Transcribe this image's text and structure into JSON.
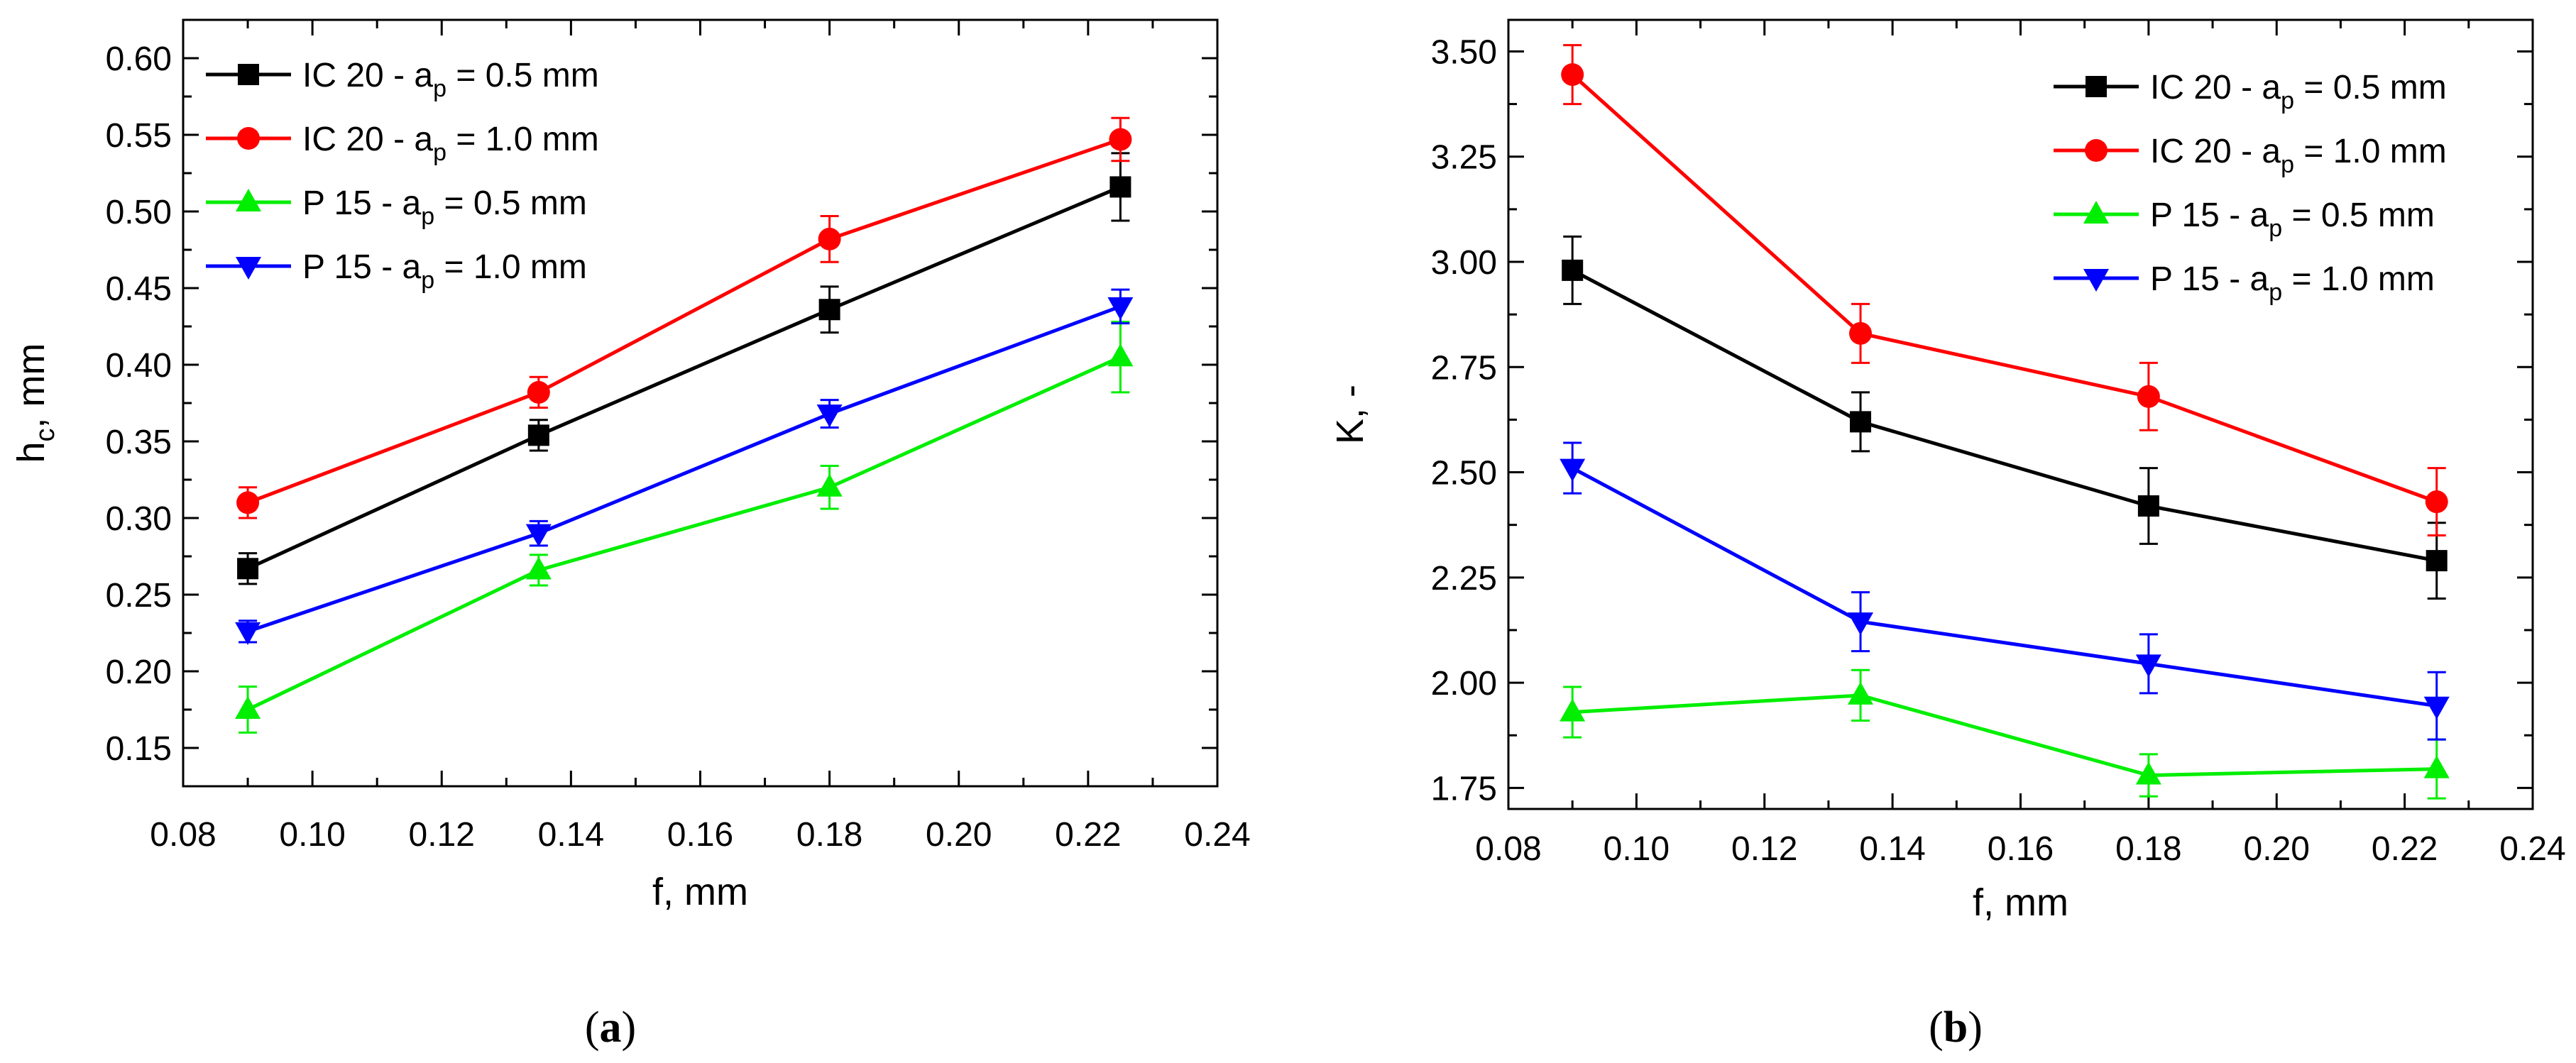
{
  "chart_data": [
    {
      "type": "line",
      "panel_label": "(a)",
      "xlabel": "f, mm",
      "ylabel": "hc, mm",
      "ylabel_parts": {
        "main": "h",
        "sub": "c",
        "rest": ", mm"
      },
      "xlim": [
        0.08,
        0.24
      ],
      "ylim": [
        0.125,
        0.625
      ],
      "x_ticks": [
        "0.08",
        "0.10",
        "0.12",
        "0.14",
        "0.16",
        "0.18",
        "0.20",
        "0.22",
        "0.24"
      ],
      "y_ticks": [
        "0.15",
        "0.20",
        "0.25",
        "0.30",
        "0.35",
        "0.40",
        "0.45",
        "0.50",
        "0.55",
        "0.60"
      ],
      "legend_position": "top-left",
      "x": [
        0.09,
        0.135,
        0.18,
        0.225
      ],
      "series": [
        {
          "name": "IC 20 - ap = 0.5 mm",
          "label_main": "IC 20 - a",
          "label_sub": "p",
          "label_rest": " = 0.5 mm",
          "color": "#000000",
          "marker": "square",
          "values": [
            0.267,
            0.354,
            0.436,
            0.516
          ],
          "errors": [
            0.01,
            0.01,
            0.015,
            0.022
          ]
        },
        {
          "name": "IC 20 - ap = 1.0 mm",
          "label_main": "IC 20 - a",
          "label_sub": "p",
          "label_rest": " = 1.0 mm",
          "color": "#ff0000",
          "marker": "circle",
          "values": [
            0.31,
            0.382,
            0.482,
            0.547
          ],
          "errors": [
            0.01,
            0.01,
            0.015,
            0.014
          ]
        },
        {
          "name": "P 15 - ap = 0.5 mm",
          "label_main": "P 15 - a",
          "label_sub": "p",
          "label_rest": " = 0.5 mm",
          "color": "#00ee00",
          "marker": "triangle-up",
          "values": [
            0.175,
            0.266,
            0.32,
            0.405
          ],
          "errors": [
            0.015,
            0.01,
            0.014,
            0.023
          ]
        },
        {
          "name": "P 15 - ap = 1.0 mm",
          "label_main": "P 15 - a",
          "label_sub": "p",
          "label_rest": " = 1.0 mm",
          "color": "#0000ff",
          "marker": "triangle-down",
          "values": [
            0.226,
            0.29,
            0.368,
            0.438
          ],
          "errors": [
            0.007,
            0.008,
            0.009,
            0.011
          ]
        }
      ]
    },
    {
      "type": "line",
      "panel_label": "(b)",
      "xlabel": "f, mm",
      "ylabel": "K, -",
      "ylabel_parts": {
        "main": "K, -",
        "sub": "",
        "rest": ""
      },
      "xlim": [
        0.08,
        0.24
      ],
      "ylim": [
        1.7,
        3.575
      ],
      "x_ticks": [
        "0.08",
        "0.10",
        "0.12",
        "0.14",
        "0.16",
        "0.18",
        "0.20",
        "0.22",
        "0.24"
      ],
      "y_ticks": [
        "1.75",
        "2.00",
        "2.25",
        "2.50",
        "2.75",
        "3.00",
        "3.25",
        "3.50"
      ],
      "legend_position": "top-right",
      "x": [
        0.09,
        0.135,
        0.18,
        0.225
      ],
      "series": [
        {
          "name": "IC 20 - ap = 0.5 mm",
          "label_main": "IC 20 - a",
          "label_sub": "p",
          "label_rest": " = 0.5 mm",
          "color": "#000000",
          "marker": "square",
          "values": [
            2.98,
            2.62,
            2.42,
            2.29
          ],
          "errors": [
            0.08,
            0.07,
            0.09,
            0.09
          ]
        },
        {
          "name": "IC 20 - ap = 1.0 mm",
          "label_main": "IC 20 - a",
          "label_sub": "p",
          "label_rest": " = 1.0 mm",
          "color": "#ff0000",
          "marker": "circle",
          "values": [
            3.445,
            2.83,
            2.68,
            2.43
          ],
          "errors": [
            0.07,
            0.07,
            0.08,
            0.08
          ]
        },
        {
          "name": "P 15 - ap = 0.5 mm",
          "label_main": "P 15 - a",
          "label_sub": "p",
          "label_rest": " = 0.5 mm",
          "color": "#00ee00",
          "marker": "triangle-up",
          "values": [
            1.93,
            1.97,
            1.78,
            1.795
          ],
          "errors": [
            0.06,
            0.06,
            0.05,
            0.07
          ]
        },
        {
          "name": "P 15 - ap = 1.0 mm",
          "label_main": "P 15 - a",
          "label_sub": "p",
          "label_rest": " = 1.0 mm",
          "color": "#0000ff",
          "marker": "triangle-down",
          "values": [
            2.51,
            2.145,
            2.045,
            1.945
          ],
          "errors": [
            0.06,
            0.07,
            0.07,
            0.08
          ]
        }
      ]
    }
  ]
}
